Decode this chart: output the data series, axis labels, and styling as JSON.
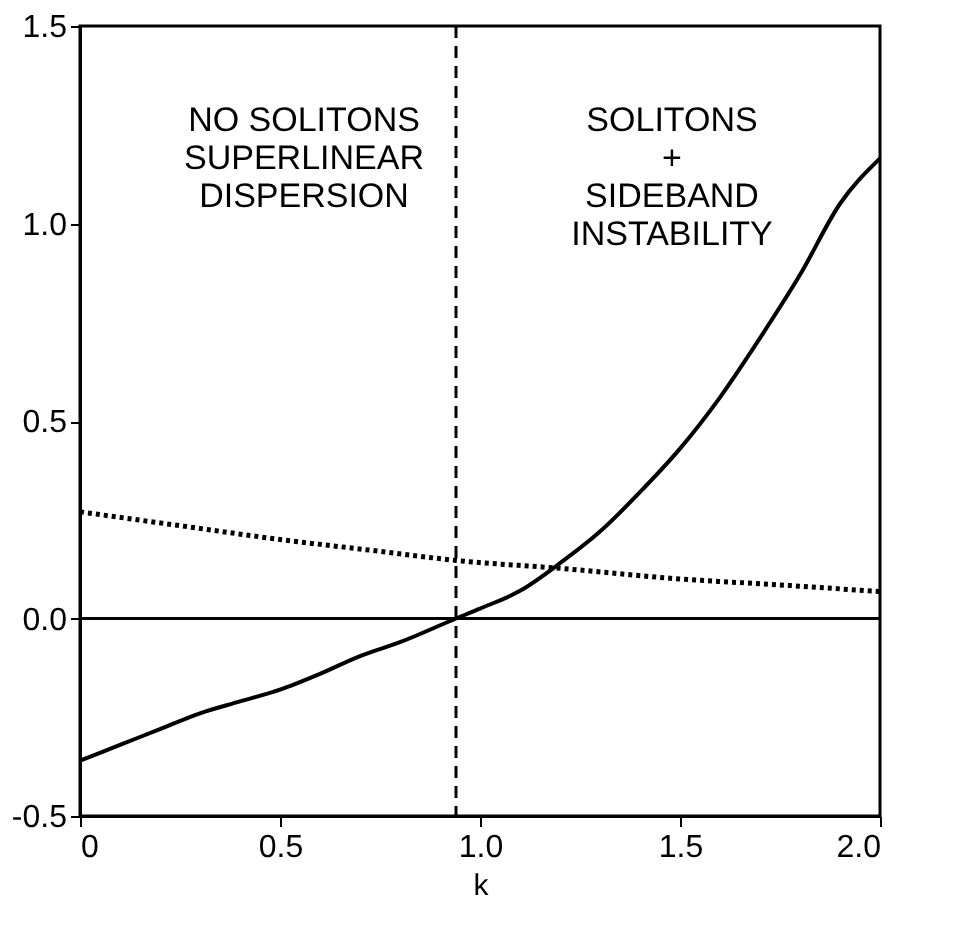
{
  "chart_data": {
    "type": "line",
    "xlabel": "k",
    "series": [
      {
        "color": "#000000",
        "line_style": "solid",
        "x": [
          0,
          0.1,
          0.2,
          0.3,
          0.4,
          0.5,
          0.6,
          0.7,
          0.8,
          0.94,
          1.0,
          1.1,
          1.2,
          1.3,
          1.4,
          1.5,
          1.6,
          1.7,
          1.8,
          1.9,
          2.0
        ],
        "values": [
          -0.36,
          -0.32,
          -0.28,
          -0.24,
          -0.21,
          -0.18,
          -0.14,
          -0.095,
          -0.06,
          0.0,
          0.025,
          0.07,
          0.14,
          0.22,
          0.32,
          0.43,
          0.56,
          0.71,
          0.87,
          1.05,
          1.165
        ]
      },
      {
        "color": "#000000",
        "line_style": "dotted",
        "x": [
          0,
          0.25,
          0.5,
          0.75,
          0.94,
          1.2,
          1.5,
          1.75,
          2.0
        ],
        "values": [
          0.27,
          0.235,
          0.2,
          0.17,
          0.147,
          0.127,
          0.1,
          0.085,
          0.068
        ]
      }
    ],
    "xlim": [
      0,
      2.0
    ],
    "ylim": [
      -0.5,
      1.5
    ],
    "xticks": [
      {
        "value": 0,
        "label": "0"
      },
      0.5,
      {
        "value": 1,
        "label": "1.0"
      },
      1.5,
      {
        "value": 2,
        "label": "2.0"
      }
    ],
    "yticks": [
      {
        "value": -0.5,
        "label": "-0.5"
      },
      {
        "value": 0,
        "label": "0.0"
      },
      0.5,
      {
        "value": 1,
        "label": "1.0"
      },
      1.5
    ],
    "ref_lines": [
      {
        "axis": "x",
        "value": 0.94,
        "line_style": "dashed",
        "color": "#000000"
      },
      {
        "axis": "y",
        "value": 0,
        "line_style": "solid",
        "color": "#000000"
      }
    ],
    "annotations": [
      "NO SOLITONS\nSUPERLINEAR\nDISPERSION",
      "SOLITONS\n+\nSIDEBAND\nINSTABILITY"
    ],
    "grid": false
  }
}
